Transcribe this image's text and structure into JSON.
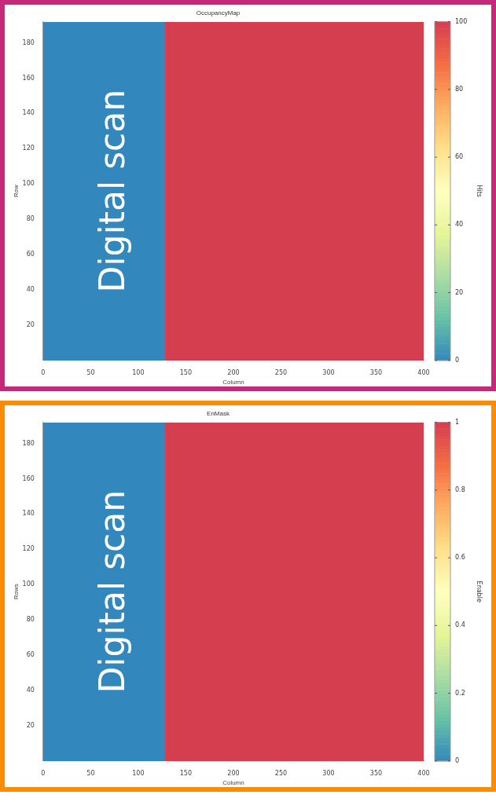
{
  "chart_data": [
    {
      "type": "heatmap",
      "title": "OccupancyMap",
      "xlabel": "Column",
      "ylabel": "Row",
      "clabel": "Hits",
      "cells": [
        [
          0,
          0,
          0,
          0,
          0,
          0,
          0,
          0,
          100,
          100,
          100,
          100,
          100,
          100,
          100,
          100,
          100,
          100,
          100,
          100,
          100,
          100,
          100,
          100,
          100
        ]
      ],
      "xlim": [
        0,
        400
      ],
      "ylim": [
        0,
        192
      ],
      "xticks": [
        0,
        50,
        100,
        150,
        200,
        250,
        300,
        350,
        400
      ],
      "yticks": [
        20,
        40,
        60,
        80,
        100,
        120,
        140,
        160,
        180
      ],
      "clim": [
        0,
        100
      ],
      "cticks": [
        0,
        20,
        40,
        60,
        80,
        100
      ],
      "annotations": [
        "Digital scan"
      ]
    },
    {
      "type": "heatmap",
      "title": "EnMask",
      "xlabel": "Column",
      "ylabel": "Rows",
      "clabel": "Enable",
      "cells": [
        [
          0,
          0,
          0,
          0,
          0,
          0,
          0,
          0,
          1,
          1,
          1,
          1,
          1,
          1,
          1,
          1,
          1,
          1,
          1,
          1,
          1,
          1,
          1,
          1,
          1
        ]
      ],
      "xlim": [
        0,
        400
      ],
      "ylim": [
        0,
        192
      ],
      "xticks": [
        0,
        50,
        100,
        150,
        200,
        250,
        300,
        350,
        400
      ],
      "yticks": [
        20,
        40,
        60,
        80,
        100,
        120,
        140,
        160,
        180
      ],
      "clim": [
        0,
        1
      ],
      "cticks": [
        0,
        0.2,
        0.4,
        0.6,
        0.8,
        1
      ],
      "annotations": [
        "Digital scan"
      ]
    }
  ]
}
